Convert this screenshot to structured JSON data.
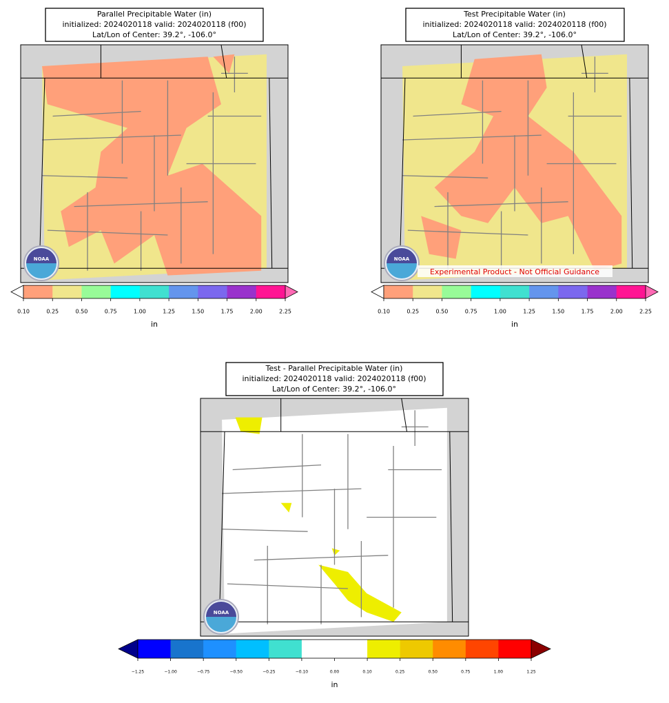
{
  "panels": [
    {
      "title": [
        "Parallel Precipitable Water (in)",
        "initialized: 2024020118 valid: 2024020118 (f00)",
        "Lat/Lon of Center: 39.2°, -106.0°"
      ],
      "logo_text": "NOAA",
      "colorbar": {
        "label": "in",
        "under_color": "#ffffff",
        "over_color": "#ff69b4",
        "colors": [
          "#ffa07a",
          "#f0e68c",
          "#98fb98",
          "#00ffff",
          "#40e0d0",
          "#6495ed",
          "#7b68ee",
          "#9932cc",
          "#ff1493"
        ],
        "ticks": [
          {
            "value": 0.1,
            "label": "0.10"
          },
          {
            "value": 0.25,
            "label": "0.25"
          },
          {
            "value": 0.5,
            "label": "0.50"
          },
          {
            "value": 0.75,
            "label": "0.75"
          },
          {
            "value": 1,
            "label": "1.00"
          },
          {
            "value": 1.25,
            "label": "1.25"
          },
          {
            "value": 1.5,
            "label": "1.50"
          },
          {
            "value": 1.75,
            "label": "1.75"
          },
          {
            "value": 2,
            "label": "2.00"
          },
          {
            "value": 2.25,
            "label": "2.25"
          }
        ]
      }
    },
    {
      "title": [
        "Test Precipitable Water (in)",
        "initialized: 2024020118 valid: 2024020118 (f00)",
        "Lat/Lon of Center: 39.2°, -106.0°"
      ],
      "logo_text": "NOAA",
      "annotation": "Experimental Product - Not Official Guidance",
      "colorbar": {
        "label": "in",
        "under_color": "#ffffff",
        "over_color": "#ff69b4",
        "colors": [
          "#ffa07a",
          "#f0e68c",
          "#98fb98",
          "#00ffff",
          "#40e0d0",
          "#6495ed",
          "#7b68ee",
          "#9932cc",
          "#ff1493"
        ],
        "ticks": [
          {
            "value": 0.1,
            "label": "0.10"
          },
          {
            "value": 0.25,
            "label": "0.25"
          },
          {
            "value": 0.5,
            "label": "0.50"
          },
          {
            "value": 0.75,
            "label": "0.75"
          },
          {
            "value": 1,
            "label": "1.00"
          },
          {
            "value": 1.25,
            "label": "1.25"
          },
          {
            "value": 1.5,
            "label": "1.50"
          },
          {
            "value": 1.75,
            "label": "1.75"
          },
          {
            "value": 2,
            "label": "2.00"
          },
          {
            "value": 2.25,
            "label": "2.25"
          }
        ]
      }
    },
    {
      "title": [
        "Test - Parallel Precipitable Water (in)",
        "initialized: 2024020118 valid: 2024020118 (f00)",
        "Lat/Lon of Center: 39.2°, -106.0°"
      ],
      "logo_text": "NOAA",
      "colorbar": {
        "label": "in",
        "under_color": "#00008b",
        "over_color": "#8b0000",
        "colors": [
          "#0000ff",
          "#1874cd",
          "#1e90ff",
          "#00bfff",
          "#40e0d0",
          "#ffffff",
          "#ffffff",
          "#eeee00",
          "#eec900",
          "#ff8c00",
          "#ff4500",
          "#ff0000"
        ],
        "ticks": [
          {
            "value": -1.25,
            "label": "−1.25"
          },
          {
            "value": -1,
            "label": "−1.00"
          },
          {
            "value": -0.75,
            "label": "−0.75"
          },
          {
            "value": -0.5,
            "label": "−0.50"
          },
          {
            "value": -0.25,
            "label": "−0.25"
          },
          {
            "value": -0.1,
            "label": "−0.10"
          },
          {
            "value": 0,
            "label": "0.00"
          },
          {
            "value": 0.1,
            "label": "0.10"
          },
          {
            "value": 0.25,
            "label": "0.25"
          },
          {
            "value": 0.5,
            "label": "0.50"
          },
          {
            "value": 0.75,
            "label": "0.75"
          },
          {
            "value": 1,
            "label": "1.00"
          },
          {
            "value": 1.25,
            "label": "1.25"
          }
        ]
      }
    }
  ]
}
